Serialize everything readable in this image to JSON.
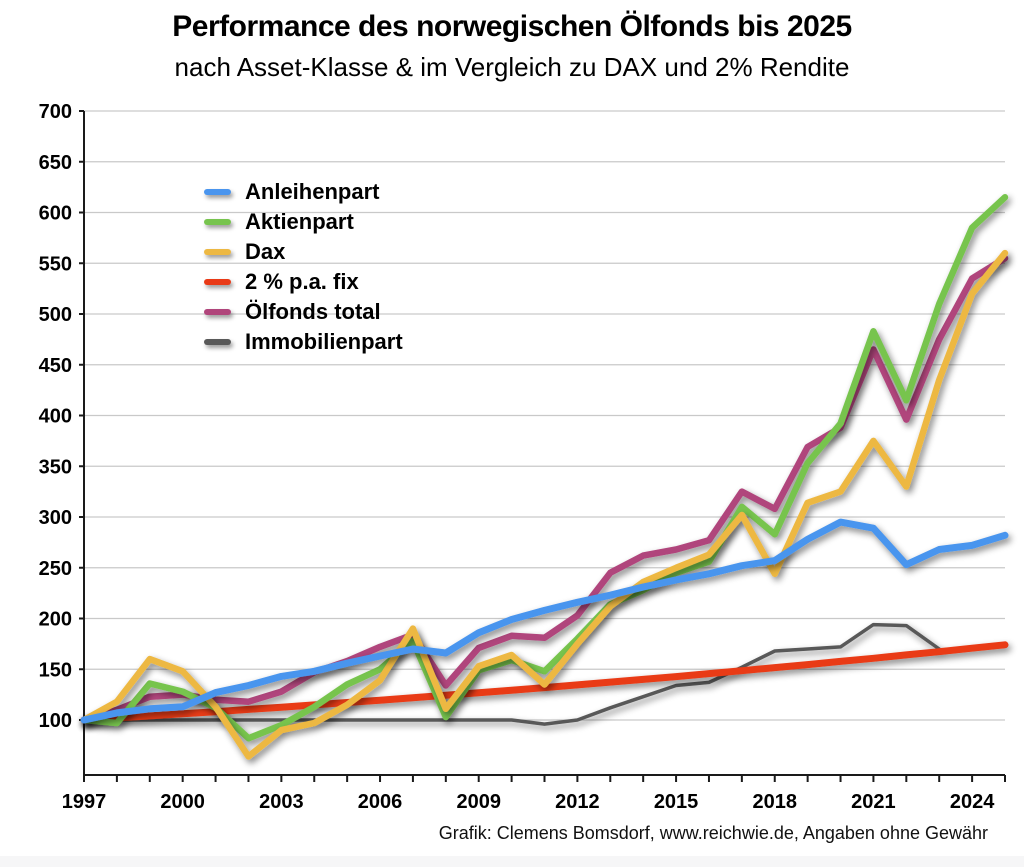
{
  "title": "Performance des norwegischen Ölfonds bis 2025",
  "subtitle": "nach Asset-Klasse & im Vergleich zu DAX und 2% Rendite",
  "footer": "Grafik: Clemens Bomsdorf, www.reichwie.de, Angaben ohne Gewähr",
  "chart_data": {
    "type": "line",
    "x": [
      1997,
      1998,
      1999,
      2000,
      2001,
      2002,
      2003,
      2004,
      2005,
      2006,
      2007,
      2008,
      2009,
      2010,
      2011,
      2012,
      2013,
      2014,
      2015,
      2016,
      2017,
      2018,
      2019,
      2020,
      2021,
      2022,
      2023,
      2024,
      2025
    ],
    "x_tick_labels": [
      "1997",
      "2000",
      "2003",
      "2006",
      "2009",
      "2012",
      "2015",
      "2018",
      "2021",
      "2024"
    ],
    "y_tick_labels": [
      "700",
      "650",
      "600",
      "550",
      "500",
      "450",
      "400",
      "350",
      "300",
      "250",
      "200",
      "150",
      "100"
    ],
    "y_ticks": [
      700,
      650,
      600,
      550,
      500,
      450,
      400,
      350,
      300,
      250,
      200,
      150,
      100
    ],
    "ylim": [
      45,
      700
    ],
    "xlim": [
      1997,
      2025
    ],
    "grid": "horizontal",
    "legend_position": "upper-left-inside",
    "series": [
      {
        "name": "Anleihenpart",
        "color": "#4A95EE",
        "values": [
          100,
          107,
          111,
          113,
          127,
          134,
          143,
          148,
          156,
          163,
          170,
          166,
          186,
          199,
          208,
          216,
          223,
          231,
          238,
          244,
          252,
          257,
          278,
          295,
          289,
          253,
          268,
          272,
          282
        ]
      },
      {
        "name": "Aktienpart",
        "color": "#77C44E",
        "values": [
          100,
          97,
          136,
          128,
          112,
          82,
          95,
          113,
          135,
          150,
          178,
          103,
          149,
          159,
          148,
          180,
          214,
          228,
          245,
          256,
          310,
          283,
          353,
          392,
          483,
          415,
          510,
          585,
          615
        ]
      },
      {
        "name": "Dax",
        "color": "#EDB843",
        "values": [
          100,
          118,
          160,
          148,
          113,
          64,
          90,
          97,
          115,
          139,
          190,
          111,
          153,
          164,
          135,
          175,
          212,
          236,
          250,
          263,
          302,
          244,
          314,
          325,
          375,
          330,
          435,
          520,
          560
        ]
      },
      {
        "name": "2 % p.a. fix",
        "color": "#E93A17",
        "values": [
          100,
          102,
          104,
          106.1,
          108.2,
          110.4,
          112.6,
          114.9,
          117.2,
          119.5,
          121.9,
          124.3,
          126.8,
          129.4,
          131.9,
          134.6,
          137.3,
          140,
          142.8,
          145.7,
          148.6,
          151.6,
          154.6,
          157.7,
          160.8,
          164.1,
          167.3,
          170.7,
          174.1
        ]
      },
      {
        "name": "Ölfonds total",
        "color": "#B0457B",
        "values": [
          100,
          110,
          123,
          125,
          120,
          118,
          128,
          147,
          158,
          172,
          184,
          134,
          171,
          183,
          181,
          203,
          245,
          262,
          268,
          277,
          325,
          308,
          369,
          388,
          465,
          396,
          475,
          535,
          555
        ]
      },
      {
        "name": "Immobilienpart",
        "color": "#595959",
        "values": [
          100,
          100,
          100,
          100,
          100,
          100,
          100,
          100,
          100,
          100,
          100,
          100,
          100,
          100,
          96,
          100,
          112,
          123,
          134,
          137,
          152,
          168,
          170,
          172,
          194,
          193,
          170,
          null,
          null
        ]
      }
    ]
  }
}
